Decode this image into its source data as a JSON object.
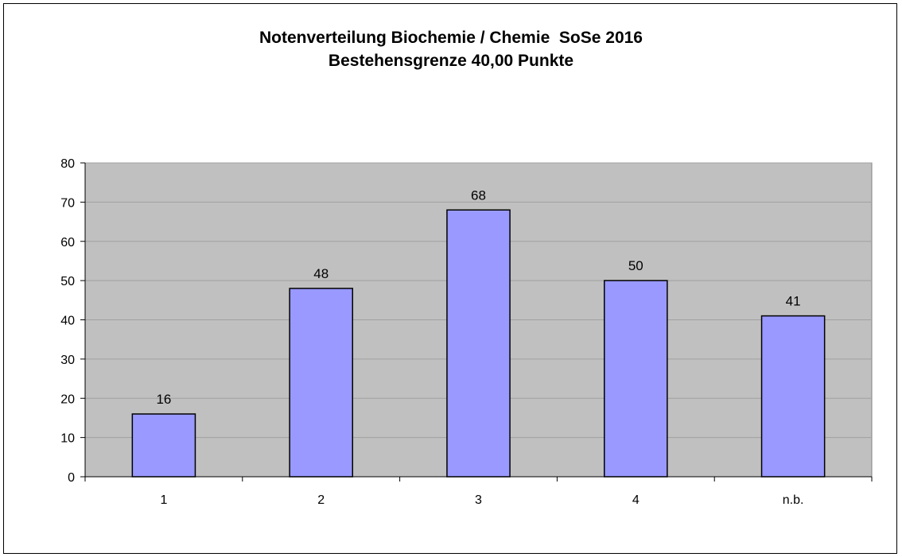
{
  "chart_data": {
    "type": "bar",
    "title": "Notenverteilung Biochemie / Chemie  SoSe 2016",
    "subtitle": "Bestehensgrenze 40,00 Punkte",
    "categories": [
      "1",
      "2",
      "3",
      "4",
      "n.b."
    ],
    "values": [
      16,
      48,
      68,
      50,
      41
    ],
    "ylim": [
      0,
      80
    ],
    "yticks": [
      0,
      10,
      20,
      30,
      40,
      50,
      60,
      70,
      80
    ],
    "xlabel": "",
    "ylabel": "",
    "grid": true,
    "legend": "none",
    "colors": {
      "bar_fill": "#9999ff",
      "bar_stroke": "#000000",
      "plot_background": "#c0c0c0",
      "gridline": "#a0a0a0"
    }
  }
}
